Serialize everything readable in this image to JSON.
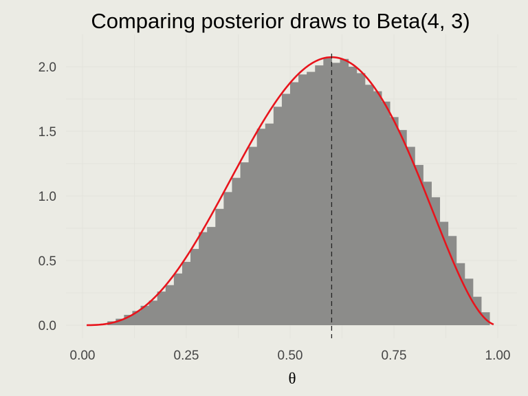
{
  "chart_data": {
    "type": "bar",
    "title": "Comparing posterior draws to Beta(4, 3)",
    "xlabel": "θ",
    "ylabel": "",
    "xlim": [
      0.0,
      1.0
    ],
    "ylim": [
      0.0,
      2.0
    ],
    "x_ticks": [
      "0.00",
      "0.25",
      "0.50",
      "0.75",
      "1.00"
    ],
    "y_ticks": [
      "0.0",
      "0.5",
      "1.0",
      "1.5",
      "2.0"
    ],
    "grid": true,
    "legend": "none",
    "histogram": {
      "bin_width": 0.02,
      "bin_starts": [
        0.06,
        0.08,
        0.1,
        0.12,
        0.14,
        0.16,
        0.18,
        0.2,
        0.22,
        0.24,
        0.26,
        0.28,
        0.3,
        0.32,
        0.34,
        0.36,
        0.38,
        0.4,
        0.42,
        0.44,
        0.46,
        0.48,
        0.5,
        0.52,
        0.54,
        0.56,
        0.58,
        0.6,
        0.62,
        0.64,
        0.66,
        0.68,
        0.7,
        0.72,
        0.74,
        0.76,
        0.78,
        0.8,
        0.82,
        0.84,
        0.86,
        0.88,
        0.9,
        0.92,
        0.94,
        0.96
      ],
      "density": [
        0.03,
        0.05,
        0.08,
        0.11,
        0.15,
        0.19,
        0.26,
        0.31,
        0.4,
        0.49,
        0.59,
        0.72,
        0.76,
        0.9,
        1.03,
        1.14,
        1.26,
        1.38,
        1.52,
        1.56,
        1.69,
        1.79,
        1.88,
        1.94,
        1.96,
        2.01,
        2.07,
        2.03,
        2.06,
        2.0,
        1.95,
        1.86,
        1.81,
        1.73,
        1.61,
        1.51,
        1.38,
        1.24,
        1.11,
        0.99,
        0.8,
        0.69,
        0.48,
        0.36,
        0.22,
        0.1
      ]
    },
    "curve": {
      "name": "Beta(4, 3)",
      "alpha": 4,
      "beta": 3
    },
    "reference_line": {
      "x": 0.6,
      "style": "dashed"
    },
    "colors": {
      "bars": "#8c8c8a",
      "curve": "#e8141c",
      "reference_line": "#222222",
      "grid": "#e3e3dc",
      "background": "#ebebe4"
    }
  }
}
